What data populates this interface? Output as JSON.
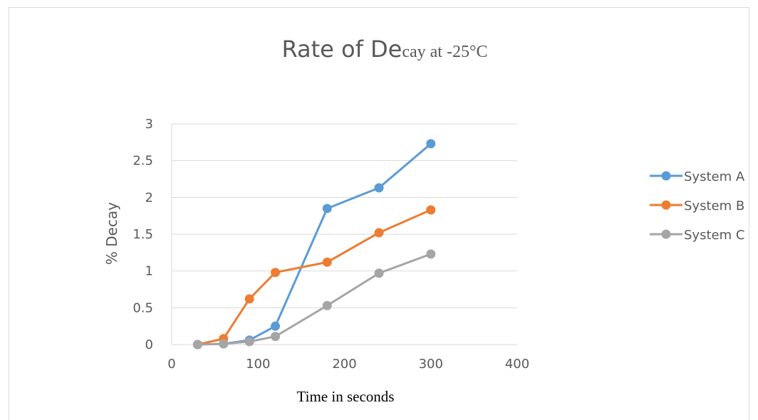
{
  "chart_data": {
    "type": "line",
    "title_main": "Rate of De",
    "title_tail": "cay at -25°C",
    "xlabel": "Time in seconds",
    "ylabel": "% Decay",
    "xlim": [
      0,
      400
    ],
    "ylim": [
      0,
      3
    ],
    "x_ticks": [
      "0",
      "100",
      "200",
      "300",
      "400"
    ],
    "y_ticks": [
      "0",
      "0.5",
      "1",
      "1.5",
      "2",
      "2.5",
      "3"
    ],
    "grid": "horizontal",
    "legend_position": "right",
    "x": [
      30,
      60,
      90,
      120,
      180,
      240,
      300
    ],
    "series": [
      {
        "name": "System A",
        "color": "#5b9bd5",
        "values": [
          0,
          0.01,
          0.06,
          0.25,
          1.85,
          2.13,
          2.73
        ]
      },
      {
        "name": "System B",
        "color": "#ed7d31",
        "values": [
          0,
          0.08,
          0.62,
          0.98,
          1.12,
          1.52,
          1.83
        ]
      },
      {
        "name": "System C",
        "color": "#a5a5a5",
        "values": [
          0,
          0.01,
          0.04,
          0.11,
          0.53,
          0.97,
          1.23
        ]
      }
    ]
  }
}
